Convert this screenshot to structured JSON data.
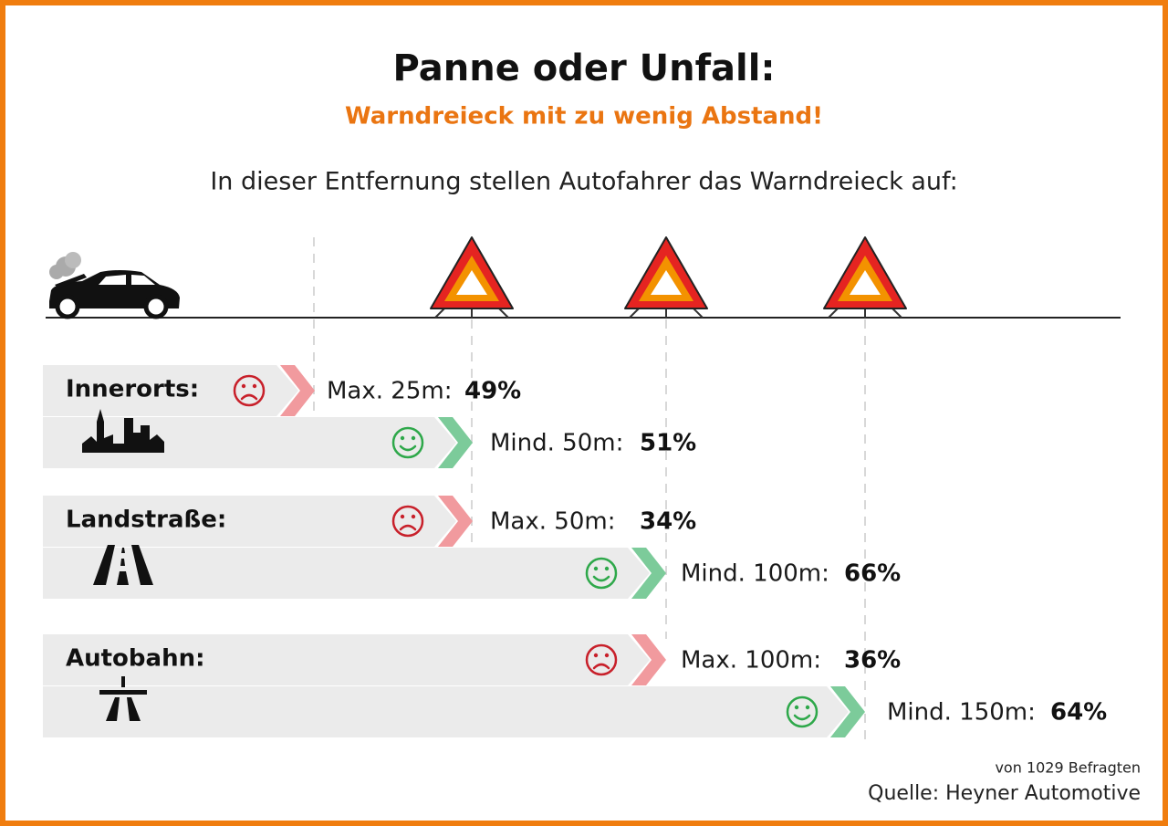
{
  "title": "Panne oder Unfall:",
  "subtitle": "Warndreieck mit zu wenig Abstand!",
  "intro": "In dieser Entfernung stellen Autofahrer das Warndreieck auf:",
  "groups": [
    {
      "label": "Innerorts:",
      "rows": [
        {
          "text": "Max. 25m:",
          "share": "49%"
        },
        {
          "text": "Mind. 50m:",
          "share": "51%"
        }
      ]
    },
    {
      "label": "Landstraße:",
      "rows": [
        {
          "text": "Max. 50m:",
          "share": "34%"
        },
        {
          "text": "Mind. 100m:",
          "share": "66%"
        }
      ]
    },
    {
      "label": "Autobahn:",
      "rows": [
        {
          "text": "Max. 100m:",
          "share": "36%"
        },
        {
          "text": "Mind. 150m:",
          "share": "64%"
        }
      ]
    }
  ],
  "footer": {
    "sample": "von 1029 Befragten",
    "source": "Quelle: Heyner Automotive"
  }
}
